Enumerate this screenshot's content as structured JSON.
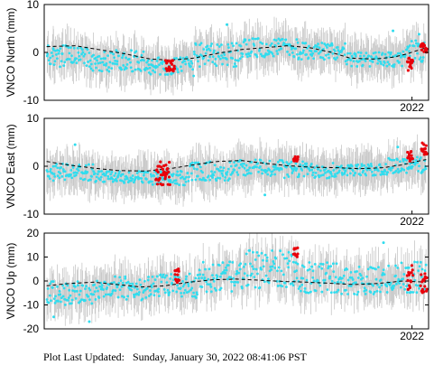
{
  "chart_data": [
    {
      "type": "scatter",
      "station": "VNCO",
      "ylabel": "VNCO North (mm)",
      "ylim": [
        -10,
        10
      ],
      "yticks": [
        -10,
        0,
        10
      ],
      "xlim": [
        2014.25,
        2022.35
      ],
      "xtick_labels": [
        {
          "x": 2022.0,
          "label": "2022"
        }
      ],
      "grid": false,
      "series": [],
      "trend_knots": [
        [
          2014.3,
          1.2
        ],
        [
          2014.9,
          1.4
        ],
        [
          2015.4,
          0.6
        ],
        [
          2015.9,
          -0.2
        ],
        [
          2016.5,
          -1.4
        ],
        [
          2016.9,
          -1.6
        ],
        [
          2017.4,
          -1.2
        ],
        [
          2017.9,
          -0.2
        ],
        [
          2018.4,
          0.6
        ],
        [
          2018.9,
          1.0
        ],
        [
          2019.4,
          1.4
        ],
        [
          2019.9,
          0.9
        ],
        [
          2020.3,
          0.0
        ],
        [
          2020.7,
          -1.2
        ],
        [
          2021.2,
          -1.4
        ],
        [
          2021.6,
          -1.0
        ],
        [
          2021.9,
          -0.3
        ],
        [
          2022.3,
          1.0
        ]
      ],
      "data_value_ranges": [
        {
          "x": [
            2014.3,
            2015.2
          ],
          "y": [
            -3,
            1.5
          ]
        },
        {
          "x": [
            2015.2,
            2016.4
          ],
          "y": [
            -4,
            0.5
          ]
        },
        {
          "x": [
            2016.4,
            2017.4
          ],
          "y": [
            -5,
            -1
          ]
        },
        {
          "x": [
            2017.4,
            2018.4
          ],
          "y": [
            -3,
            2
          ]
        },
        {
          "x": [
            2018.4,
            2019.6
          ],
          "y": [
            -1,
            3
          ]
        },
        {
          "x": [
            2019.6,
            2020.6
          ],
          "y": [
            -1.5,
            2
          ]
        },
        {
          "x": [
            2020.6,
            2021.8
          ],
          "y": [
            -3,
            0
          ]
        },
        {
          "x": [
            2021.8,
            2022.3
          ],
          "y": [
            -2,
            2.5
          ]
        }
      ],
      "red_value_ranges": [
        {
          "x": [
            2016.8,
            2017.0
          ],
          "y": [
            -4,
            -1.5
          ]
        },
        {
          "x": [
            2021.9,
            2022.02
          ],
          "y": [
            -4,
            -1
          ]
        },
        {
          "x": [
            2022.18,
            2022.32
          ],
          "y": [
            0,
            2
          ]
        }
      ],
      "cyan_outliers": [
        [
          2018.1,
          5.8
        ],
        [
          2021.6,
          4.5
        ],
        [
          2022.15,
          3.8
        ]
      ]
    },
    {
      "type": "scatter",
      "station": "VNCO",
      "ylabel": "VNCO East (mm)",
      "ylim": [
        -10,
        10
      ],
      "yticks": [
        -10,
        0,
        10
      ],
      "xlim": [
        2014.25,
        2022.35
      ],
      "xtick_labels": [
        {
          "x": 2022.0,
          "label": "2022"
        }
      ],
      "grid": false,
      "series": [],
      "trend_knots": [
        [
          2014.3,
          1.0
        ],
        [
          2014.8,
          0.2
        ],
        [
          2015.3,
          -0.4
        ],
        [
          2015.8,
          -0.9
        ],
        [
          2016.4,
          -1.0
        ],
        [
          2016.9,
          -0.5
        ],
        [
          2017.4,
          0.3
        ],
        [
          2017.9,
          1.0
        ],
        [
          2018.4,
          1.2
        ],
        [
          2018.9,
          0.6
        ],
        [
          2019.4,
          0.1
        ],
        [
          2019.9,
          -0.2
        ],
        [
          2020.4,
          -0.3
        ],
        [
          2020.9,
          -0.5
        ],
        [
          2021.4,
          -0.3
        ],
        [
          2021.8,
          0.3
        ],
        [
          2022.1,
          1.0
        ],
        [
          2022.3,
          1.4
        ]
      ],
      "data_value_ranges": [
        {
          "x": [
            2014.3,
            2015.3
          ],
          "y": [
            -3,
            0.5
          ]
        },
        {
          "x": [
            2015.3,
            2016.3
          ],
          "y": [
            -3.5,
            -1
          ]
        },
        {
          "x": [
            2016.3,
            2017.3
          ],
          "y": [
            -4,
            -1
          ]
        },
        {
          "x": [
            2017.3,
            2018.3
          ],
          "y": [
            -3,
            1
          ]
        },
        {
          "x": [
            2018.3,
            2019.3
          ],
          "y": [
            -2,
            1.5
          ]
        },
        {
          "x": [
            2019.3,
            2020.4
          ],
          "y": [
            -2.5,
            1
          ]
        },
        {
          "x": [
            2020.4,
            2021.5
          ],
          "y": [
            -2,
            0.5
          ]
        },
        {
          "x": [
            2021.5,
            2022.3
          ],
          "y": [
            -1.5,
            2
          ]
        }
      ],
      "red_value_ranges": [
        {
          "x": [
            2016.6,
            2016.9
          ],
          "y": [
            -4,
            1
          ]
        },
        {
          "x": [
            2019.5,
            2019.6
          ],
          "y": [
            1,
            2
          ]
        },
        {
          "x": [
            2021.9,
            2022.02
          ],
          "y": [
            1,
            3.5
          ]
        },
        {
          "x": [
            2022.2,
            2022.32
          ],
          "y": [
            2,
            5
          ]
        }
      ],
      "cyan_outliers": [
        [
          2014.9,
          4.5
        ],
        [
          2018.9,
          -6.0
        ],
        [
          2021.7,
          4.0
        ]
      ]
    },
    {
      "type": "scatter",
      "station": "VNCO",
      "ylabel": "VNCO Up (mm)",
      "ylim": [
        -20,
        20
      ],
      "yticks": [
        -20,
        -10,
        0,
        10,
        20
      ],
      "xlim": [
        2014.25,
        2022.35
      ],
      "xtick_labels": [
        {
          "x": 2022.0,
          "label": "2022"
        }
      ],
      "grid": false,
      "series": [],
      "trend_knots": [
        [
          2014.3,
          -2.0
        ],
        [
          2014.8,
          -1.0
        ],
        [
          2015.3,
          -0.5
        ],
        [
          2015.8,
          -1.5
        ],
        [
          2016.3,
          -2.5
        ],
        [
          2016.8,
          -2.0
        ],
        [
          2017.3,
          -0.5
        ],
        [
          2017.8,
          0.5
        ],
        [
          2018.3,
          0.8
        ],
        [
          2018.8,
          0.3
        ],
        [
          2019.3,
          -0.2
        ],
        [
          2019.8,
          -0.5
        ],
        [
          2020.3,
          -1.0
        ],
        [
          2020.8,
          -1.5
        ],
        [
          2021.3,
          -1.0
        ],
        [
          2021.8,
          0.0
        ],
        [
          2022.1,
          -0.3
        ],
        [
          2022.3,
          -0.5
        ]
      ],
      "data_value_ranges": [
        {
          "x": [
            2014.3,
            2015.3
          ],
          "y": [
            -10,
            0
          ]
        },
        {
          "x": [
            2015.3,
            2016.5
          ],
          "y": [
            -8,
            2
          ]
        },
        {
          "x": [
            2016.5,
            2017.5
          ],
          "y": [
            -7,
            3
          ]
        },
        {
          "x": [
            2017.5,
            2018.5
          ],
          "y": [
            -5,
            8
          ]
        },
        {
          "x": [
            2018.5,
            2019.5
          ],
          "y": [
            -3,
            13
          ]
        },
        {
          "x": [
            2019.5,
            2020.5
          ],
          "y": [
            -5,
            8
          ]
        },
        {
          "x": [
            2020.5,
            2021.5
          ],
          "y": [
            -6,
            6
          ]
        },
        {
          "x": [
            2021.5,
            2022.3
          ],
          "y": [
            -5,
            8
          ]
        }
      ],
      "red_value_ranges": [
        {
          "x": [
            2017.0,
            2017.1
          ],
          "y": [
            -1,
            5
          ]
        },
        {
          "x": [
            2019.5,
            2019.6
          ],
          "y": [
            10,
            14
          ]
        },
        {
          "x": [
            2021.9,
            2022.02
          ],
          "y": [
            -4,
            7
          ]
        },
        {
          "x": [
            2022.18,
            2022.32
          ],
          "y": [
            -5,
            4
          ]
        }
      ],
      "cyan_outliers": [
        [
          2014.45,
          -15.0
        ],
        [
          2015.2,
          -17.0
        ],
        [
          2021.4,
          16.0
        ]
      ]
    }
  ],
  "footer": {
    "label": "Plot Last Updated:",
    "timestamp": "Sunday, January 30, 2022 08:41:06 PST"
  },
  "colors": {
    "data_point": "#30dcee",
    "red_point": "#e8000b",
    "error_bar": "#c8c8c8",
    "trend_line": "#000000",
    "axis": "#000000"
  }
}
